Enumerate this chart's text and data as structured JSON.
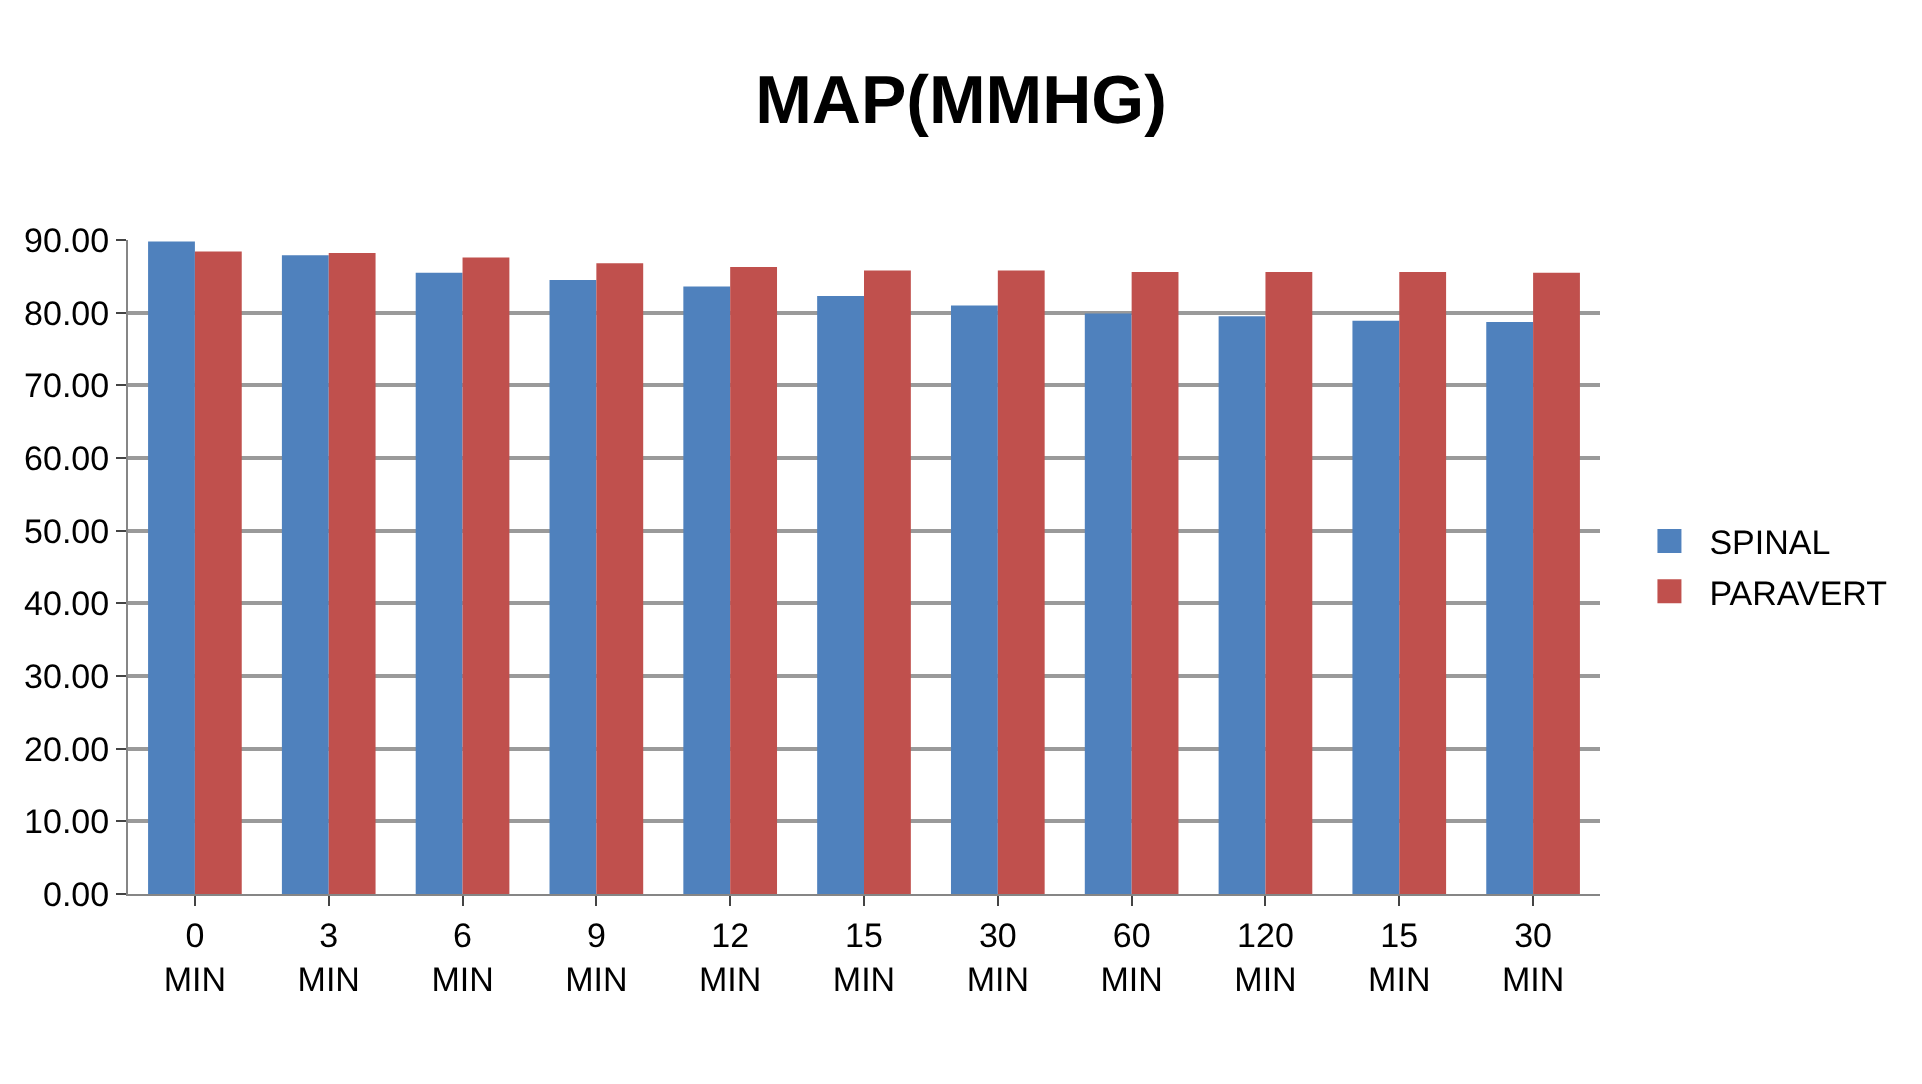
{
  "chart_data": {
    "type": "bar",
    "title": "MAP(MMHG)",
    "categories": [
      "0 MIN",
      "3 MIN",
      "6 MIN",
      "9 MIN",
      "12 MIN",
      "15 MIN",
      "30 MIN",
      "60 MIN",
      "120 MIN",
      "15 MIN",
      "30 MIN"
    ],
    "series": [
      {
        "name": "SPINAL",
        "color": "#4f81bd",
        "values": [
          89.8,
          87.9,
          85.5,
          84.5,
          83.6,
          82.3,
          81.0,
          79.9,
          79.5,
          78.9,
          78.7
        ]
      },
      {
        "name": "PARAVERT",
        "color": "#c0504d",
        "values": [
          88.4,
          88.2,
          87.6,
          86.8,
          86.3,
          85.8,
          85.8,
          85.6,
          85.6,
          85.6,
          85.5
        ]
      }
    ],
    "ylim": [
      0,
      90
    ],
    "yticks": [
      {
        "value": 0,
        "label": "0.00"
      },
      {
        "value": 10,
        "label": "10.00"
      },
      {
        "value": 20,
        "label": "20.00"
      },
      {
        "value": 30,
        "label": "30.00"
      },
      {
        "value": 40,
        "label": "40.00"
      },
      {
        "value": 50,
        "label": "50.00"
      },
      {
        "value": 60,
        "label": "60.00"
      },
      {
        "value": 70,
        "label": "70.00"
      },
      {
        "value": 80,
        "label": "80.00"
      },
      {
        "value": 90,
        "label": "90.00"
      }
    ],
    "grid": "y",
    "legend": "right"
  }
}
